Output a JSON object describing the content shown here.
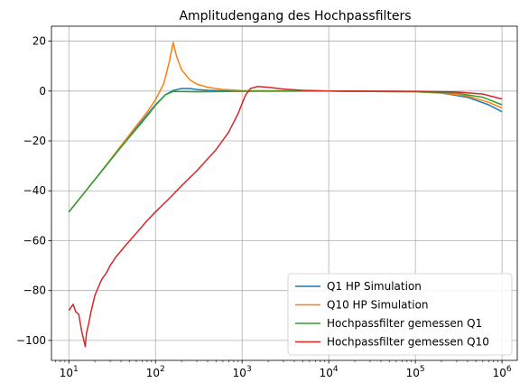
{
  "chart_data": {
    "type": "line",
    "title": "Amplitudengang des Hochpassfilters",
    "xlabel": "",
    "ylabel": "",
    "xscale": "log",
    "xlim": [
      6.3,
      1500000
    ],
    "ylim": [
      -108,
      26
    ],
    "grid": true,
    "legend_position": "lower right",
    "x_ticks": [
      {
        "value": 10,
        "base": "10",
        "exp": "1"
      },
      {
        "value": 100,
        "base": "10",
        "exp": "2"
      },
      {
        "value": 1000,
        "base": "10",
        "exp": "3"
      },
      {
        "value": 10000,
        "base": "10",
        "exp": "4"
      },
      {
        "value": 100000,
        "base": "10",
        "exp": "5"
      },
      {
        "value": 1000000,
        "base": "10",
        "exp": "6"
      }
    ],
    "y_ticks": [
      {
        "value": 20,
        "label": "20"
      },
      {
        "value": 0,
        "label": "0"
      },
      {
        "value": -20,
        "label": "−20"
      },
      {
        "value": -40,
        "label": "−40"
      },
      {
        "value": -60,
        "label": "−60"
      },
      {
        "value": -80,
        "label": "−80"
      },
      {
        "value": -100,
        "label": "−100"
      }
    ],
    "series": [
      {
        "name": "Q1 HP Simulation",
        "color": "#1f77b4",
        "points": [
          [
            10,
            -48.5
          ],
          [
            20,
            -35.5
          ],
          [
            40,
            -22.5
          ],
          [
            70,
            -12
          ],
          [
            100,
            -5.5
          ],
          [
            130,
            -1.5
          ],
          [
            160,
            0.2
          ],
          [
            200,
            1.0
          ],
          [
            250,
            1.0
          ],
          [
            300,
            0.6
          ],
          [
            400,
            0.3
          ],
          [
            600,
            0.1
          ],
          [
            1000,
            0
          ],
          [
            10000,
            0
          ],
          [
            100000,
            -0.3
          ],
          [
            200000,
            -0.8
          ],
          [
            400000,
            -2.5
          ],
          [
            700000,
            -5.5
          ],
          [
            1000000,
            -8.3
          ]
        ]
      },
      {
        "name": "Q10 HP Simulation",
        "color": "#ff7f0e",
        "points": [
          [
            10,
            -48.5
          ],
          [
            20,
            -35.5
          ],
          [
            40,
            -22
          ],
          [
            60,
            -14
          ],
          [
            80,
            -8.5
          ],
          [
            100,
            -3.5
          ],
          [
            125,
            3
          ],
          [
            145,
            12
          ],
          [
            160,
            19.5
          ],
          [
            175,
            14
          ],
          [
            200,
            8.5
          ],
          [
            250,
            4.5
          ],
          [
            300,
            2.8
          ],
          [
            400,
            1.5
          ],
          [
            600,
            0.6
          ],
          [
            1000,
            0.2
          ],
          [
            10000,
            0
          ],
          [
            100000,
            -0.3
          ],
          [
            200000,
            -0.7
          ],
          [
            400000,
            -2
          ],
          [
            700000,
            -4.5
          ],
          [
            1000000,
            -6.8
          ]
        ]
      },
      {
        "name": "Hochpassfilter gemessen Q1",
        "color": "#2ca02c",
        "points": [
          [
            10,
            -48.5
          ],
          [
            20,
            -35.5
          ],
          [
            40,
            -22.5
          ],
          [
            70,
            -12.5
          ],
          [
            100,
            -5.8
          ],
          [
            130,
            -1.5
          ],
          [
            160,
            -0.2
          ],
          [
            300,
            -0.3
          ],
          [
            1000,
            -0.1
          ],
          [
            10000,
            0
          ],
          [
            100000,
            -0.2
          ],
          [
            300000,
            -0.8
          ],
          [
            600000,
            -2.5
          ],
          [
            1000000,
            -5.5
          ]
        ]
      },
      {
        "name": "Hochpassfilter gemessen Q10",
        "color": "#d62728",
        "points": [
          [
            10,
            -88
          ],
          [
            11.2,
            -85.5
          ],
          [
            12,
            -88.5
          ],
          [
            13,
            -89.5
          ],
          [
            14,
            -96
          ],
          [
            15.5,
            -102.5
          ],
          [
            16,
            -97
          ],
          [
            17,
            -93
          ],
          [
            18,
            -88.5
          ],
          [
            20,
            -82
          ],
          [
            22,
            -78.5
          ],
          [
            24,
            -75.5
          ],
          [
            27,
            -73
          ],
          [
            30,
            -70
          ],
          [
            35,
            -66.5
          ],
          [
            45,
            -62
          ],
          [
            60,
            -57
          ],
          [
            80,
            -52
          ],
          [
            100,
            -48.5
          ],
          [
            150,
            -42.5
          ],
          [
            200,
            -38
          ],
          [
            300,
            -32
          ],
          [
            500,
            -23.5
          ],
          [
            700,
            -16.5
          ],
          [
            900,
            -9
          ],
          [
            1000,
            -5
          ],
          [
            1100,
            -1.5
          ],
          [
            1250,
            1.0
          ],
          [
            1500,
            1.8
          ],
          [
            2000,
            1.5
          ],
          [
            3000,
            0.8
          ],
          [
            5000,
            0.3
          ],
          [
            10000,
            0
          ],
          [
            100000,
            -0.1
          ],
          [
            300000,
            -0.4
          ],
          [
            600000,
            -1.2
          ],
          [
            1000000,
            -3.2
          ]
        ]
      }
    ]
  }
}
